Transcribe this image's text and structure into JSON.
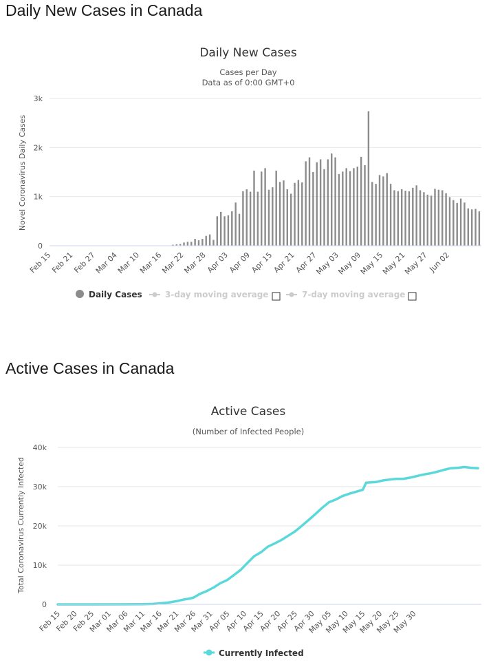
{
  "sections": {
    "daily_heading": "Daily New Cases in Canada",
    "active_heading": "Active Cases in Canada"
  },
  "colors": {
    "bar": "#8c8c8c",
    "line": "#5ad8da",
    "legend_disabled": "#cccccc",
    "legend_active": "#333333"
  },
  "chart_data": [
    {
      "type": "bar",
      "title": "Daily New Cases",
      "subtitle_line1": "Cases per Day",
      "subtitle_line2": "Data as of 0:00 GMT+0",
      "ylabel": "Novel Coronavirus Daily Cases",
      "ylim": [
        0,
        3000
      ],
      "yticks": [
        "0",
        "1k",
        "2k",
        "3k"
      ],
      "grid": true,
      "start_date": "Feb 15",
      "xtick_labels": [
        "Feb 15",
        "Feb 21",
        "Feb 27",
        "Mar 04",
        "Mar 10",
        "Mar 16",
        "Mar 22",
        "Mar 28",
        "Apr 03",
        "Apr 09",
        "Apr 15",
        "Apr 21",
        "Apr 27",
        "May 03",
        "May 09",
        "May 15",
        "May 21",
        "May 27",
        "Jun 02"
      ],
      "xtick_every": 6,
      "series": [
        {
          "name": "Daily Cases",
          "values": [
            0,
            0,
            0,
            0,
            0,
            0,
            0,
            0,
            0,
            0,
            0,
            0,
            0,
            0,
            0,
            0,
            0,
            0,
            0,
            0,
            0,
            0,
            0,
            0,
            0,
            0,
            0,
            0,
            1,
            1,
            2,
            5,
            4,
            20,
            30,
            35,
            65,
            80,
            80,
            140,
            110,
            140,
            200,
            230,
            120,
            600,
            690,
            600,
            620,
            700,
            880,
            650,
            1110,
            1150,
            1100,
            1530,
            1100,
            1510,
            1580,
            1140,
            1190,
            1530,
            1300,
            1330,
            1150,
            1060,
            1280,
            1340,
            1290,
            1720,
            1800,
            1500,
            1700,
            1760,
            1560,
            1760,
            1880,
            1800,
            1460,
            1510,
            1580,
            1520,
            1580,
            1610,
            1810,
            1640,
            2740,
            1300,
            1260,
            1440,
            1410,
            1480,
            1260,
            1130,
            1110,
            1150,
            1120,
            1110,
            1180,
            1230,
            1130,
            1090,
            1040,
            1020,
            1160,
            1140,
            1130,
            1070,
            990,
            930,
            870,
            960,
            880,
            760,
            740,
            750,
            700
          ]
        },
        {
          "name": "3-day moving average",
          "values": []
        },
        {
          "name": "7-day moving average",
          "values": []
        }
      ],
      "legend": [
        "Daily Cases",
        "3-day moving average",
        "7-day moving average"
      ]
    },
    {
      "type": "line",
      "title": "Active Cases",
      "subtitle_line1": "(Number of Infected People)",
      "ylabel": "Total Coronavirus Currently Infected",
      "ylim": [
        0,
        40000
      ],
      "yticks": [
        "0",
        "10k",
        "20k",
        "30k",
        "40k"
      ],
      "grid": true,
      "start_date": "Feb 15",
      "xtick_labels": [
        "Feb 15",
        "Feb 20",
        "Feb 25",
        "Mar 01",
        "Mar 06",
        "Mar 11",
        "Mar 16",
        "Mar 21",
        "Mar 26",
        "Mar 31",
        "Apr 05",
        "Apr 10",
        "Apr 15",
        "Apr 20",
        "Apr 25",
        "Apr 30",
        "May 05",
        "May 10",
        "May 15",
        "May 20",
        "May 25",
        "May 30"
      ],
      "xtick_every": 5,
      "series": [
        {
          "name": "Currently Infected",
          "points": [
            [
              0,
              5
            ],
            [
              10,
              5
            ],
            [
              20,
              10
            ],
            [
              25,
              50
            ],
            [
              28,
              100
            ],
            [
              30,
              250
            ],
            [
              33,
              500
            ],
            [
              35,
              800
            ],
            [
              37,
              1200
            ],
            [
              39,
              1500
            ],
            [
              40,
              1700
            ],
            [
              42,
              2700
            ],
            [
              44,
              3400
            ],
            [
              46,
              4300
            ],
            [
              48,
              5400
            ],
            [
              50,
              6200
            ],
            [
              52,
              7500
            ],
            [
              54,
              8800
            ],
            [
              56,
              10600
            ],
            [
              58,
              12300
            ],
            [
              60,
              13300
            ],
            [
              62,
              14700
            ],
            [
              64,
              15500
            ],
            [
              66,
              16400
            ],
            [
              68,
              17500
            ],
            [
              70,
              18600
            ],
            [
              72,
              20000
            ],
            [
              74,
              21500
            ],
            [
              76,
              23000
            ],
            [
              78,
              24600
            ],
            [
              80,
              26000
            ],
            [
              82,
              26700
            ],
            [
              84,
              27600
            ],
            [
              86,
              28200
            ],
            [
              88,
              28700
            ],
            [
              90,
              29200
            ],
            [
              91,
              31000
            ],
            [
              94,
              31200
            ],
            [
              96,
              31600
            ],
            [
              98,
              31800
            ],
            [
              100,
              32000
            ],
            [
              102,
              32000
            ],
            [
              104,
              32300
            ],
            [
              106,
              32700
            ],
            [
              108,
              33100
            ],
            [
              110,
              33400
            ],
            [
              112,
              33800
            ],
            [
              114,
              34300
            ],
            [
              116,
              34700
            ],
            [
              118,
              34800
            ],
            [
              120,
              35000
            ],
            [
              122,
              34800
            ],
            [
              124,
              34700
            ]
          ]
        }
      ],
      "legend": [
        "Currently Infected"
      ]
    }
  ]
}
